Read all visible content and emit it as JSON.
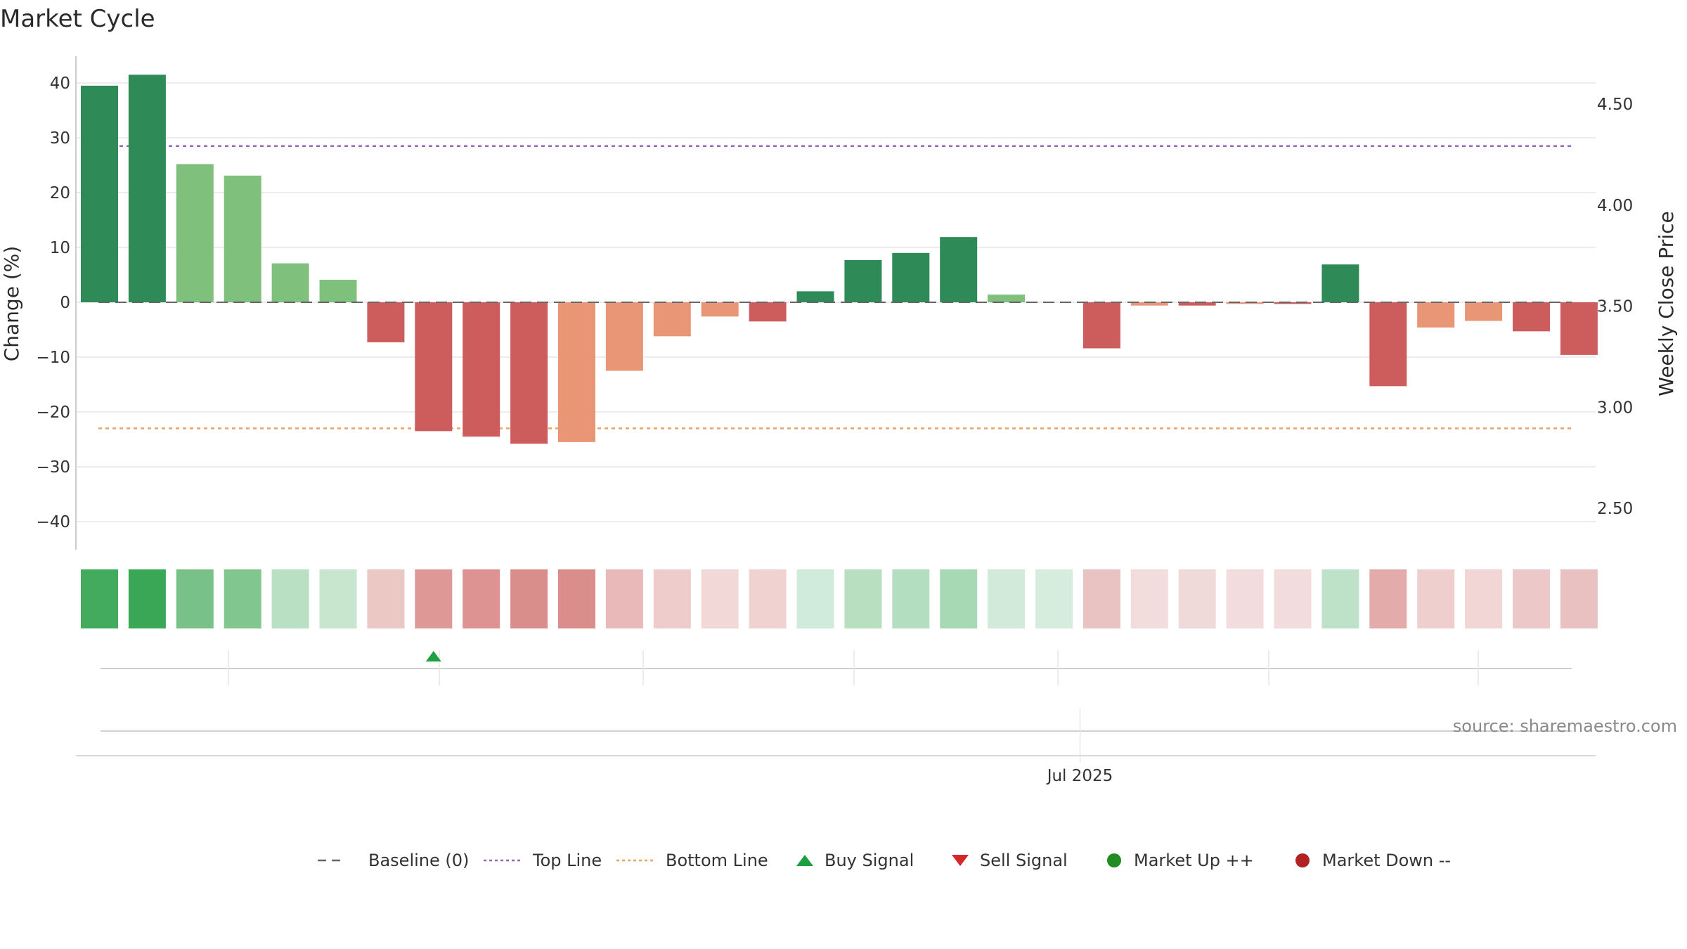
{
  "chart_data": {
    "type": "bar",
    "title": "Market Cycle",
    "ylabel": "Change (%)",
    "y2label": "Weekly Close Price",
    "ylim": [
      -45,
      45
    ],
    "y2lim": [
      2.25,
      4.75
    ],
    "yticks": [
      "40",
      "30",
      "20",
      "10",
      "0",
      "−10",
      "−20",
      "−30",
      "−40"
    ],
    "ytick_values": [
      40,
      30,
      20,
      10,
      0,
      -10,
      -20,
      -30,
      -40
    ],
    "y2ticks": [
      "4.50",
      "4.00",
      "3.50",
      "3.00",
      "2.50"
    ],
    "y2tick_values": [
      4.5,
      4.0,
      3.5,
      3.0,
      2.5
    ],
    "xtick_label": "Jul 2025",
    "xtick_index": 20,
    "baseline": 0,
    "top_line": 28.5,
    "bottom_line": -23,
    "grid": true,
    "legend_position": "bottom-center",
    "values": [
      39.5,
      41.5,
      25.2,
      23.1,
      7.1,
      4.1,
      -7.3,
      -23.5,
      -24.5,
      -25.8,
      -25.5,
      -12.5,
      -6.2,
      -2.6,
      -3.5,
      2.0,
      7.7,
      9.0,
      11.9,
      1.4,
      0,
      -8.4,
      -0.6,
      -0.6,
      -0.3,
      -0.3,
      6.9,
      -15.3,
      -4.6,
      -3.4,
      -5.3,
      -9.6
    ],
    "bar_colors": [
      "#2e8b57",
      "#2e8b57",
      "#80c07d",
      "#80c07d",
      "#80c07d",
      "#80c07d",
      "#cd5c5c",
      "#cd5c5c",
      "#cd5c5c",
      "#cd5c5c",
      "#e99676",
      "#e99676",
      "#e99676",
      "#e99676",
      "#cd5c5c",
      "#2e8b57",
      "#2e8b57",
      "#2e8b57",
      "#2e8b57",
      "#80c07d",
      "#80c07d",
      "#cd5c5c",
      "#e99676",
      "#cd5c5c",
      "#e99676",
      "#cd5c5c",
      "#2e8b57",
      "#cd5c5c",
      "#e99676",
      "#e99676",
      "#cd5c5c",
      "#cd5c5c"
    ],
    "heatmap_colors": [
      "#42ab5d",
      "#3aa757",
      "#78c28a",
      "#82c68f",
      "#b9e0c2",
      "#c7e6cd",
      "#ecc8c5",
      "#de9997",
      "#dc9391",
      "#d98e8b",
      "#d98e8b",
      "#e8b9b8",
      "#eecccb",
      "#f2d8d7",
      "#f0d2d1",
      "#d0eadb",
      "#b7dfc0",
      "#b3dec0",
      "#a8d9b5",
      "#d2eada",
      "#d6ecdd",
      "#e9c3c2",
      "#f2dcdc",
      "#efd9d9",
      "#f3dcdd",
      "#f3dcdd",
      "#bde2c7",
      "#e3acab",
      "#efcfce",
      "#f2d5d5",
      "#ecc9c8",
      "#e9c1c0"
    ],
    "signals": [
      {
        "type": "buy",
        "index": 7
      }
    ],
    "legend": [
      {
        "label": "Baseline (0)",
        "marker": "dash",
        "color": "#666666"
      },
      {
        "label": "Top Line",
        "marker": "dot-line",
        "color": "#9467bd"
      },
      {
        "label": "Bottom Line",
        "marker": "dot-line",
        "color": "#f0a060"
      },
      {
        "label": "Buy Signal",
        "marker": "triangle-up",
        "color": "#1ea040"
      },
      {
        "label": "Sell Signal",
        "marker": "triangle-down",
        "color": "#d62728"
      },
      {
        "label": "Market Up ++",
        "marker": "circle",
        "color": "#228b22"
      },
      {
        "label": "Market Down --",
        "marker": "circle",
        "color": "#b22222"
      }
    ],
    "source": "source: sharemaestro.com"
  }
}
